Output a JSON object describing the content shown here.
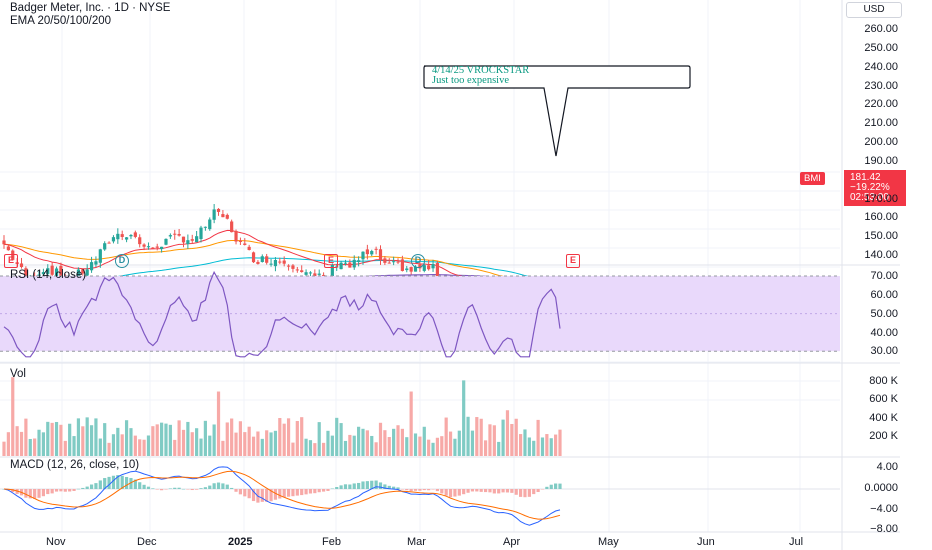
{
  "header": {
    "title": "Badger Meter, Inc. · 1D · NYSE",
    "indicator": "EMA 20/50/100/200",
    "currency": "USD"
  },
  "annotation": {
    "line1": "4/14/25 VROCKSTAR",
    "line2": "Just too expensive"
  },
  "price_tag": {
    "symbol": "BMI",
    "price": "181.42",
    "change": "−19.22%",
    "countdown": "02:53:00"
  },
  "events": [
    "E",
    "D",
    "E",
    "D",
    "E"
  ],
  "panes": {
    "rsi_title": "RSI (14, close)",
    "vol_title": "Vol",
    "macd_title": "MACD (12, 26, close, 10)"
  },
  "axes": {
    "price_ticks": [
      "260.00",
      "250.00",
      "240.00",
      "230.00",
      "220.00",
      "210.00",
      "200.00",
      "190.00",
      "170.00",
      "160.00",
      "150.00",
      "140.00"
    ],
    "rsi_ticks": [
      "70.00",
      "60.00",
      "50.00",
      "40.00",
      "30.00"
    ],
    "vol_ticks": [
      "800 K",
      "600 K",
      "400 K",
      "200 K"
    ],
    "macd_ticks": [
      "4.00",
      "0.0000",
      "−4.00",
      "−8.00"
    ],
    "x_labels": [
      {
        "text": "Nov",
        "bold": false
      },
      {
        "text": "Dec",
        "bold": false
      },
      {
        "text": "2025",
        "bold": true
      },
      {
        "text": "Feb",
        "bold": false
      },
      {
        "text": "Mar",
        "bold": false
      },
      {
        "text": "Apr",
        "bold": false
      },
      {
        "text": "May",
        "bold": false
      },
      {
        "text": "Jun",
        "bold": false
      },
      {
        "text": "Jul",
        "bold": false
      }
    ]
  },
  "colors": {
    "up": "#26a69a",
    "down": "#ef5350",
    "ema20": "#f23645",
    "ema50": "#ff9800",
    "ema100": "#00bcd4",
    "ema200": "#7e57c2",
    "rsi": "#7e57c2",
    "rsi_band": "#e9d9fb",
    "macd": "#2962ff",
    "signal": "#ff6d00",
    "annotation": "#089981"
  },
  "chart_data": {
    "type": "candlestick",
    "title": "Badger Meter, Inc. · 1D · NYSE",
    "unit": "USD",
    "price_range": [
      140,
      265
    ],
    "x": [
      "2024-10-14",
      "2024-10-21",
      "2024-10-28",
      "2024-11-04",
      "2024-11-11",
      "2024-11-18",
      "2024-11-25",
      "2024-12-02",
      "2024-12-09",
      "2024-12-16",
      "2024-12-23",
      "2024-12-30",
      "2025-01-06",
      "2025-01-13",
      "2025-01-20",
      "2025-01-27",
      "2025-02-03",
      "2025-02-10",
      "2025-02-17",
      "2025-02-24",
      "2025-03-03",
      "2025-03-10",
      "2025-03-17",
      "2025-03-24",
      "2025-03-31",
      "2025-04-07",
      "2025-04-14"
    ],
    "close_approx": [
      212,
      205,
      204,
      226,
      219,
      224,
      227,
      236,
      222,
      216,
      214,
      212,
      209,
      208,
      214,
      211,
      220,
      221,
      219,
      209,
      210,
      196,
      198,
      196,
      188,
      176,
      181.42
    ],
    "series": [
      {
        "name": "RSI (14, close)",
        "range": [
          30,
          70
        ],
        "last": 42
      },
      {
        "name": "Vol",
        "max_approx": 850000,
        "last_approx": 120000
      },
      {
        "name": "MACD (12, 26, close, 10)",
        "range": [
          -8,
          4
        ],
        "last_approx": -7
      }
    ]
  }
}
